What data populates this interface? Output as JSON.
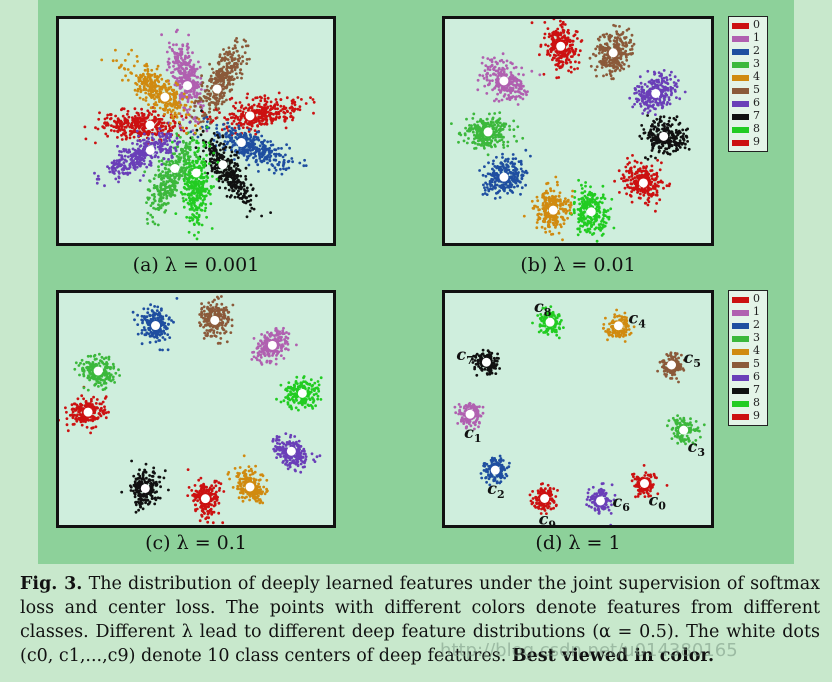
{
  "figure": {
    "panels": [
      {
        "id": "a",
        "caption": "(a)  λ = 0.001"
      },
      {
        "id": "b",
        "caption": "(b)  λ = 0.01"
      },
      {
        "id": "c",
        "caption": "(c)  λ = 0.1"
      },
      {
        "id": "d",
        "caption": "(d)  λ = 1"
      }
    ],
    "legend_labels": [
      "0",
      "1",
      "2",
      "3",
      "4",
      "5",
      "6",
      "7",
      "8",
      "9"
    ],
    "class_colors": [
      "#cc1111",
      "#b060b0",
      "#1f4fa0",
      "#3cb83c",
      "#d08a10",
      "#8b5a3a",
      "#6a3fb8",
      "#111111",
      "#22cc22",
      "#cc1111"
    ],
    "center_labels": {
      "c0": "c",
      "c0_sub": "0",
      "c1": "c",
      "c1_sub": "1",
      "c2": "c",
      "c2_sub": "2",
      "c3": "c",
      "c3_sub": "3",
      "c4": "c",
      "c4_sub": "4",
      "c5": "c",
      "c5_sub": "5",
      "c6": "c",
      "c6_sub": "6",
      "c7": "c",
      "c7_sub": "7",
      "c8": "c",
      "c8_sub": "8",
      "c9": "c",
      "c9_sub": "9"
    }
  },
  "caption_text": {
    "label": "Fig. 3.",
    "body": " The distribution of deeply learned features under the joint supervision of softmax loss and center loss. The points with different colors denote features from different classes. Different λ lead to different deep feature distributions (α = 0.5). The white dots (c0, c1,...,c9) denote 10 class centers of deep features. ",
    "emphasis": "Best viewed in color."
  },
  "watermark": "http://blog.csdn.net/u014380165"
}
